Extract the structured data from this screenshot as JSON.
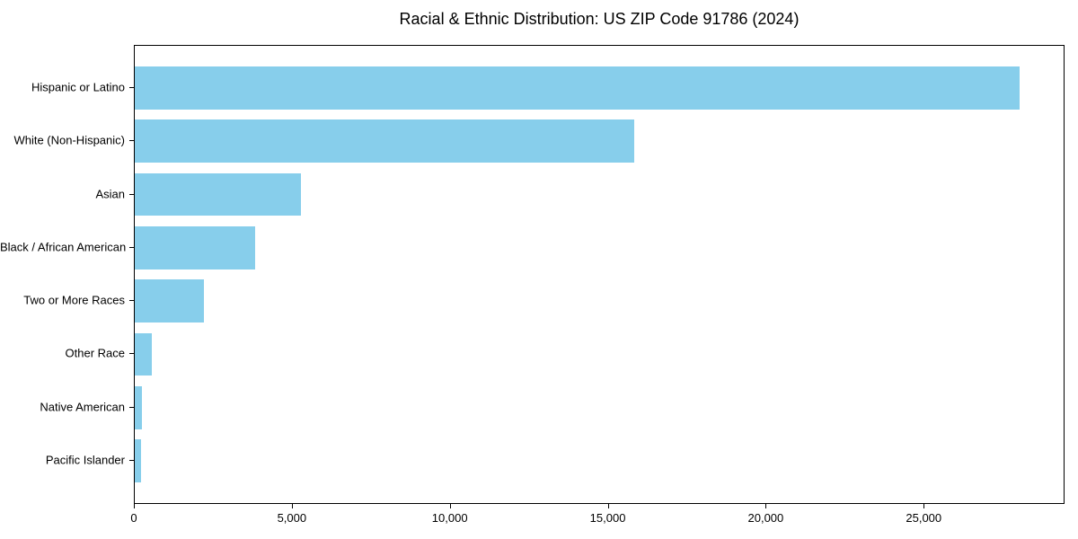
{
  "chart_data": {
    "type": "bar",
    "orientation": "horizontal",
    "title": "Racial & Ethnic Distribution: US ZIP Code 91786 (2024)",
    "categories": [
      "Hispanic or Latino",
      "White (Non-Hispanic)",
      "Asian",
      "Black / African American",
      "Two or More Races",
      "Other Race",
      "Native American",
      "Pacific Islander"
    ],
    "values": [
      28000,
      15800,
      5250,
      3800,
      2200,
      550,
      230,
      200
    ],
    "xlabel": "",
    "ylabel": "",
    "xlim": [
      0,
      29400
    ],
    "xticks": [
      0,
      5000,
      10000,
      15000,
      20000,
      25000
    ],
    "xtick_labels": [
      "0",
      "5,000",
      "10,000",
      "15,000",
      "20,000",
      "25,000"
    ],
    "bar_color": "#87CEEB",
    "axis_color": "#000000",
    "background_color": "#FFFFFF",
    "grid": false,
    "legend": null
  }
}
